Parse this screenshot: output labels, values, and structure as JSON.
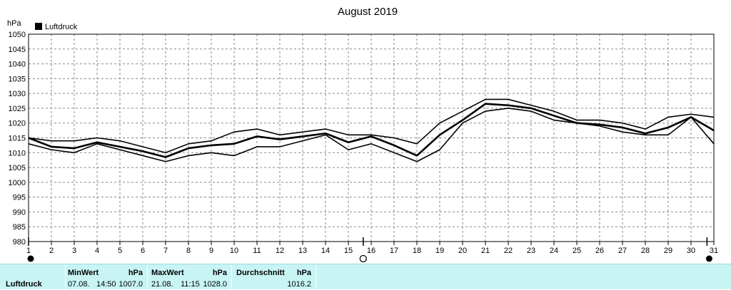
{
  "chart_data": {
    "type": "line",
    "title": "August 2019",
    "ylabel": "hPa",
    "legend": [
      "Luftdruck"
    ],
    "legend_position": "top-left",
    "grid": true,
    "ylim": [
      980,
      1050
    ],
    "yticks": [
      980,
      985,
      990,
      995,
      1000,
      1005,
      1010,
      1015,
      1020,
      1025,
      1030,
      1035,
      1040,
      1045,
      1050
    ],
    "xlim": [
      1,
      31
    ],
    "x": [
      1,
      2,
      3,
      4,
      5,
      6,
      7,
      8,
      9,
      10,
      11,
      12,
      13,
      14,
      15,
      16,
      17,
      18,
      19,
      20,
      21,
      22,
      23,
      24,
      25,
      26,
      27,
      28,
      29,
      30,
      31
    ],
    "series": [
      {
        "name": "Luftdruck",
        "role": "max",
        "values": [
          1015,
          1014,
          1014,
          1015,
          1014,
          1012,
          1010,
          1013,
          1014,
          1017,
          1018,
          1016,
          1017,
          1018,
          1016,
          1016,
          1015,
          1013,
          1020,
          1024,
          1028,
          1028,
          1026,
          1024,
          1021,
          1021,
          1020,
          1018,
          1022,
          1023,
          1022
        ]
      },
      {
        "name": "Luftdruck",
        "role": "avg",
        "values": [
          1015,
          1012,
          1011.5,
          1013.5,
          1012,
          1010.5,
          1008.5,
          1011.5,
          1012.5,
          1013,
          1015.5,
          1014.5,
          1015.5,
          1016.5,
          1013.5,
          1015.5,
          1012.5,
          1009,
          1016,
          1021,
          1026.5,
          1026,
          1025,
          1022.5,
          1020,
          1019.5,
          1018.5,
          1016.5,
          1018.5,
          1022,
          1017.5
        ]
      },
      {
        "name": "Luftdruck",
        "role": "min",
        "values": [
          1013,
          1011,
          1010,
          1013,
          1011,
          1009,
          1007,
          1009,
          1010,
          1009,
          1012,
          1012,
          1014,
          1016,
          1011,
          1013,
          1010,
          1007,
          1011,
          1020,
          1024,
          1025,
          1024,
          1021,
          1020,
          1019,
          1017,
          1016,
          1016,
          1022,
          1013
        ]
      }
    ],
    "markers": [
      {
        "x": 1,
        "symbol": "filled-circle"
      },
      {
        "x": 15.65,
        "symbol": "open-circle"
      },
      {
        "x": 30.7,
        "symbol": "filled-circle"
      }
    ]
  },
  "footer": {
    "label": "Luftdruck",
    "min": {
      "header": "MinWert",
      "unit": "hPa",
      "date": "07.08.",
      "time": "14:50",
      "value": "1007.0"
    },
    "max": {
      "header": "MaxWert",
      "unit": "hPa",
      "date": "21.08.",
      "time": "11:15",
      "value": "1028.0"
    },
    "avg": {
      "header": "Durchschnitt",
      "unit": "hPa",
      "value": "1016.2"
    }
  }
}
